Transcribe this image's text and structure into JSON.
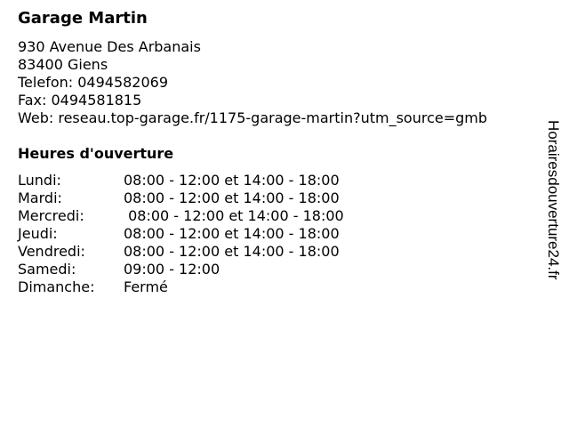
{
  "business": {
    "name": "Garage Martin",
    "address_line1": "930 Avenue Des Arbanais",
    "address_line2": "83400 Giens",
    "phone": "Telefon: 0494582069",
    "fax": "Fax: 0494581815",
    "web": "Web: reseau.top-garage.fr/1175-garage-martin?utm_source=gmb"
  },
  "hours": {
    "heading": "Heures d'ouverture",
    "rows": [
      {
        "day": "Lundi:",
        "time": "08:00 - 12:00 et 14:00 - 18:00"
      },
      {
        "day": "Mardi:",
        "time": "08:00 - 12:00 et 14:00 - 18:00"
      },
      {
        "day": "Mercredi:",
        "time": " 08:00 - 12:00 et 14:00 - 18:00"
      },
      {
        "day": "Jeudi:",
        "time": "08:00 - 12:00 et 14:00 - 18:00"
      },
      {
        "day": "Vendredi:",
        "time": "08:00 - 12:00 et 14:00 - 18:00"
      },
      {
        "day": "Samedi:",
        "time": "09:00 - 12:00"
      },
      {
        "day": "Dimanche:",
        "time": "Fermé"
      }
    ]
  },
  "watermark": "Horairesdouverture24.fr"
}
